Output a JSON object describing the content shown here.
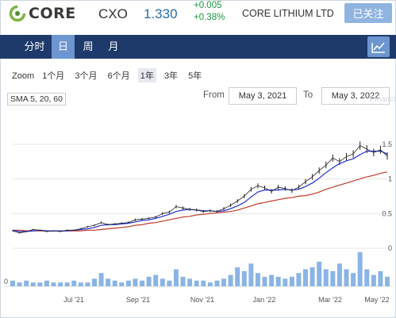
{
  "header": {
    "logo_text": "CORE",
    "ticker": "CXO",
    "price": "1.330",
    "change_abs": "+0.005",
    "change_pct": "+0.38%",
    "company": "CORE LITHIUM LTD",
    "follow_label": "已关注"
  },
  "tabs": [
    {
      "label": "分时",
      "active": false
    },
    {
      "label": "日",
      "active": true
    },
    {
      "label": "周",
      "active": false
    },
    {
      "label": "月",
      "active": false
    }
  ],
  "toolbar": {
    "zoom_label": "Zoom",
    "zoom_options": [
      {
        "label": "1个月",
        "active": false
      },
      {
        "label": "3个月",
        "active": false
      },
      {
        "label": "6个月",
        "active": false
      },
      {
        "label": "1年",
        "active": true
      },
      {
        "label": "3年",
        "active": false
      },
      {
        "label": "5年",
        "active": false
      }
    ],
    "sma_label": "SMA 5, 20, 60",
    "from_label": "From",
    "from_date": "May 3, 2021",
    "to_label": "To",
    "to_date": "May 3, 2022",
    "watermark": "Financial"
  },
  "colors": {
    "nav_bg": "#1e3a6a",
    "active_tab": "#6d95cf",
    "price_blue": "#2a6db0",
    "up_green": "#1a9641",
    "candle": "#222222",
    "sma_blue": "#1f2fd0",
    "sma_red": "#c0392b",
    "volume": "#8bb4e6"
  },
  "chart_data": {
    "type": "line",
    "x_ticks": [
      "Jul '21",
      "Sep '21",
      "Nov '21",
      "Jan '22",
      "Mar '22",
      "May '22"
    ],
    "y_ticks": [
      "0",
      "0.5",
      "1",
      "1.5"
    ],
    "ylim": [
      0,
      1.75
    ],
    "volume_axis_label": "0",
    "series": [
      {
        "values": [
          0.25,
          0.22,
          0.24,
          0.27,
          0.26,
          0.24,
          0.25,
          0.24,
          0.26,
          0.26,
          0.28,
          0.31,
          0.33,
          0.37,
          0.34,
          0.35,
          0.36,
          0.37,
          0.41,
          0.42,
          0.43,
          0.45,
          0.5,
          0.52,
          0.6,
          0.58,
          0.56,
          0.55,
          0.53,
          0.54,
          0.53,
          0.57,
          0.62,
          0.68,
          0.75,
          0.85,
          0.9,
          0.87,
          0.82,
          0.88,
          0.86,
          0.83,
          0.88,
          0.96,
          1.03,
          1.12,
          1.2,
          1.3,
          1.25,
          1.32,
          1.36,
          1.48,
          1.43,
          1.38,
          1.42,
          1.33
        ]
      },
      {
        "values": [
          0.26,
          0.24,
          0.24,
          0.25,
          0.26,
          0.25,
          0.25,
          0.25,
          0.25,
          0.26,
          0.27,
          0.28,
          0.3,
          0.33,
          0.34,
          0.34,
          0.35,
          0.36,
          0.38,
          0.4,
          0.41,
          0.43,
          0.46,
          0.49,
          0.53,
          0.55,
          0.56,
          0.55,
          0.54,
          0.54,
          0.53,
          0.54,
          0.57,
          0.61,
          0.66,
          0.74,
          0.81,
          0.84,
          0.84,
          0.84,
          0.85,
          0.84,
          0.85,
          0.89,
          0.94,
          1.01,
          1.09,
          1.16,
          1.22,
          1.26,
          1.29,
          1.35,
          1.4,
          1.4,
          1.4,
          1.36
        ]
      },
      {
        "values": [
          0.26,
          0.26,
          0.25,
          0.25,
          0.25,
          0.25,
          0.25,
          0.25,
          0.25,
          0.25,
          0.25,
          0.26,
          0.26,
          0.27,
          0.28,
          0.29,
          0.3,
          0.31,
          0.33,
          0.34,
          0.36,
          0.37,
          0.39,
          0.41,
          0.43,
          0.45,
          0.46,
          0.48,
          0.49,
          0.5,
          0.51,
          0.52,
          0.53,
          0.55,
          0.58,
          0.61,
          0.64,
          0.66,
          0.68,
          0.7,
          0.72,
          0.73,
          0.75,
          0.76,
          0.78,
          0.81,
          0.85,
          0.88,
          0.91,
          0.94,
          0.97,
          1.0,
          1.03,
          1.05,
          1.08,
          1.1
        ]
      }
    ],
    "volume": [
      3,
      2,
      3,
      2,
      2,
      3,
      2,
      2,
      2,
      3,
      2,
      2,
      4,
      7,
      4,
      3,
      2,
      3,
      4,
      3,
      5,
      6,
      4,
      3,
      9,
      5,
      4,
      3,
      3,
      2,
      3,
      4,
      6,
      10,
      8,
      12,
      7,
      5,
      6,
      5,
      4,
      5,
      7,
      9,
      10,
      13,
      9,
      8,
      12,
      9,
      7,
      18,
      9,
      6,
      8,
      5
    ]
  }
}
